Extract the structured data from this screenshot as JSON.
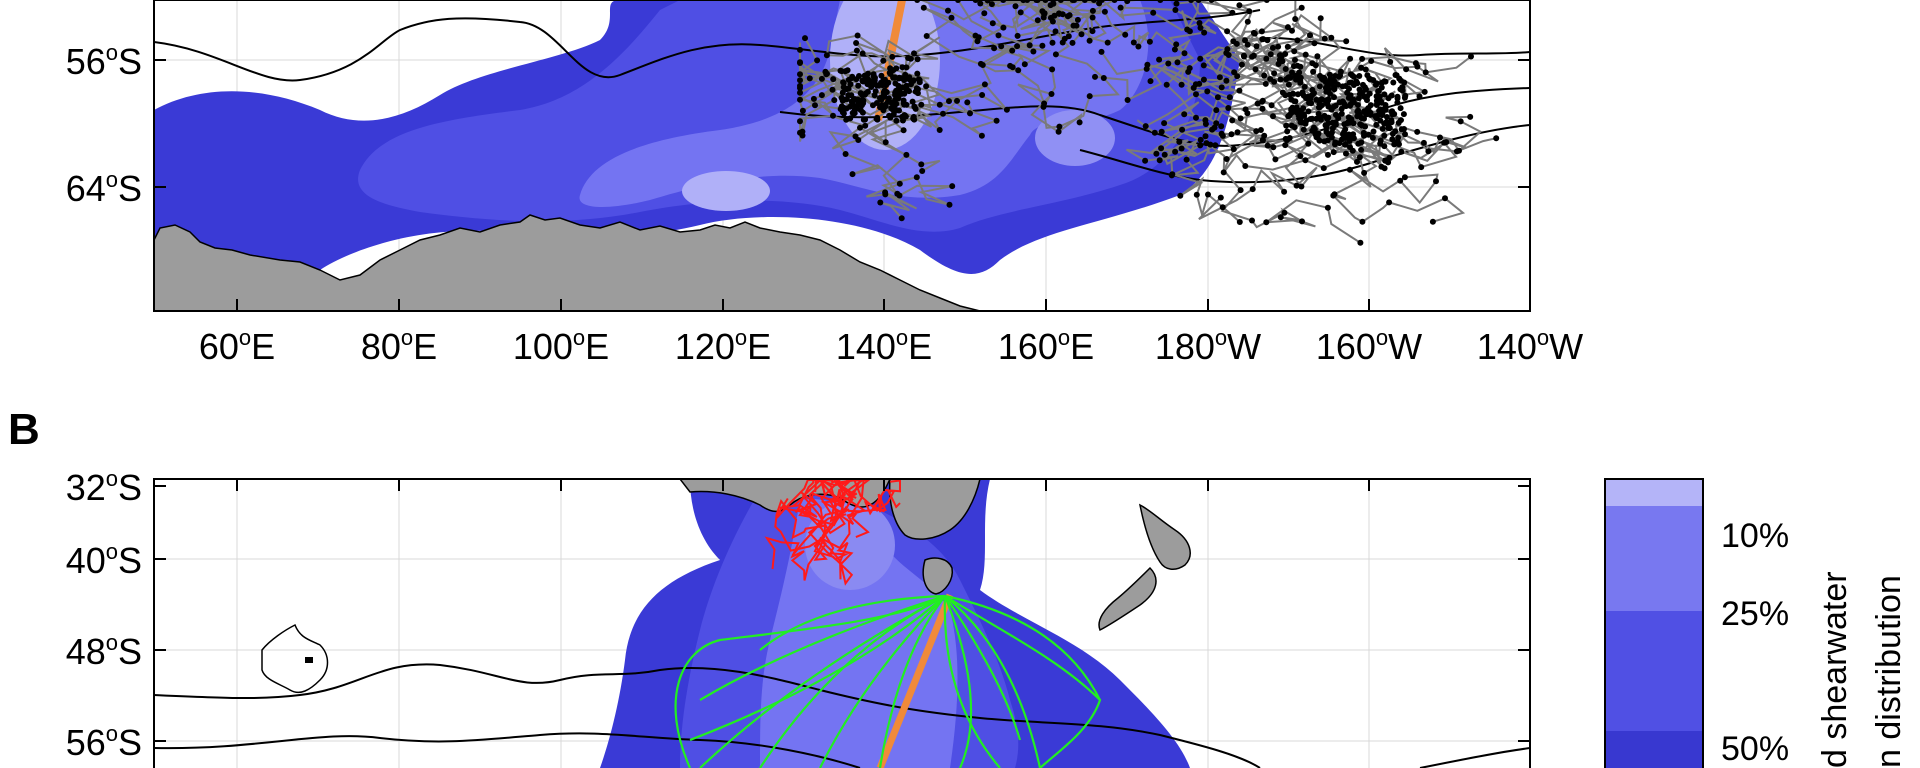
{
  "panels": [
    {
      "letter": "",
      "lat_labels": [
        {
          "deg": "56",
          "unit": "S"
        },
        {
          "deg": "64",
          "unit": "S"
        }
      ],
      "lon_labels": [
        {
          "deg": "60",
          "unit": "E"
        },
        {
          "deg": "80",
          "unit": "E"
        },
        {
          "deg": "100",
          "unit": "E"
        },
        {
          "deg": "120",
          "unit": "E"
        },
        {
          "deg": "140",
          "unit": "E"
        },
        {
          "deg": "160",
          "unit": "E"
        },
        {
          "deg": "180",
          "unit": "W"
        },
        {
          "deg": "160",
          "unit": "W"
        },
        {
          "deg": "140",
          "unit": "W"
        }
      ]
    },
    {
      "letter": "B",
      "lat_labels": [
        {
          "deg": "32",
          "unit": "S"
        },
        {
          "deg": "40",
          "unit": "S"
        },
        {
          "deg": "48",
          "unit": "S"
        },
        {
          "deg": "56",
          "unit": "S"
        }
      ],
      "lon_labels": []
    }
  ],
  "colorbar": {
    "levels": [
      "10%",
      "25%",
      "50%"
    ],
    "title_lines": [
      "d shearwater",
      "n distribution"
    ],
    "colors": [
      "#b4b4f8",
      "#7878f0",
      "#5050e4",
      "#3838d0"
    ]
  },
  "colors": {
    "ocean_white": "#ffffff",
    "land": "#9c9c9c",
    "density_outer": "#3a3ad6",
    "density_mid": "#4f4fe4",
    "density_inner": "#7474f2",
    "density_core": "#b0b0f8",
    "track_gray": "#7a7a7a",
    "track_red": "#ff1a1a",
    "track_green": "#22ee22",
    "transect_orange": "#f08a3a"
  }
}
